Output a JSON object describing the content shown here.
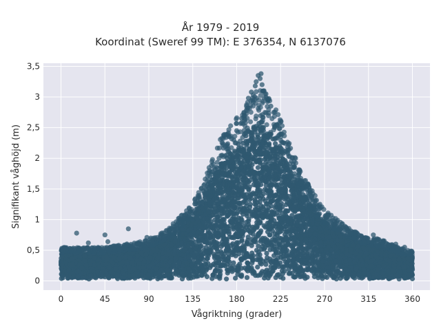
{
  "chart_data": {
    "type": "scatter",
    "title_line1": "År 1979 - 2019",
    "title_line2": "Koordinat (Sweref 99 TM): E 376354, N 6137076",
    "xlabel": "Vågriktning (grader)",
    "ylabel": "Signifikant våghöjd (m)",
    "xlim": [
      -18,
      378
    ],
    "ylim": [
      -0.15,
      3.55
    ],
    "x_ticks": [
      0,
      45,
      90,
      135,
      180,
      225,
      270,
      315,
      360
    ],
    "x_tick_labels": [
      "0",
      "45",
      "90",
      "135",
      "180",
      "225",
      "270",
      "315",
      "360"
    ],
    "y_ticks": [
      0,
      0.5,
      1,
      1.5,
      2,
      2.5,
      3,
      3.5
    ],
    "y_tick_labels": [
      "0",
      "0,5",
      "1",
      "1,5",
      "2",
      "2,5",
      "3",
      "3,5"
    ],
    "grid": true,
    "marker_color": "#2f5870",
    "background_color": "#e5e5ef",
    "envelope": {
      "direction_deg": [
        0,
        20,
        45,
        70,
        90,
        110,
        125,
        135,
        145,
        155,
        165,
        175,
        185,
        195,
        205,
        215,
        225,
        235,
        245,
        255,
        265,
        275,
        290,
        310,
        330,
        345,
        360
      ],
      "dense_max_height_m": [
        0.45,
        0.45,
        0.45,
        0.5,
        0.55,
        0.7,
        0.9,
        1.05,
        1.3,
        1.65,
        1.95,
        2.1,
        2.3,
        2.5,
        2.6,
        2.4,
        2.2,
        1.8,
        1.5,
        1.25,
        1.05,
        0.9,
        0.75,
        0.6,
        0.55,
        0.45,
        0.4
      ]
    },
    "outlier_points": [
      {
        "x": 16,
        "y": 0.78
      },
      {
        "x": 28,
        "y": 0.62
      },
      {
        "x": 45,
        "y": 0.75
      },
      {
        "x": 48,
        "y": 0.64
      },
      {
        "x": 69,
        "y": 0.85
      },
      {
        "x": 88,
        "y": 0.71
      },
      {
        "x": 92,
        "y": 0.7
      },
      {
        "x": 125,
        "y": 0.97
      },
      {
        "x": 130,
        "y": 1.0
      },
      {
        "x": 140,
        "y": 1.25
      },
      {
        "x": 155,
        "y": 1.65
      },
      {
        "x": 165,
        "y": 2.05
      },
      {
        "x": 170,
        "y": 2.15
      },
      {
        "x": 177,
        "y": 2.3
      },
      {
        "x": 180,
        "y": 2.45
      },
      {
        "x": 185,
        "y": 2.65
      },
      {
        "x": 188,
        "y": 2.7
      },
      {
        "x": 190,
        "y": 2.85
      },
      {
        "x": 192,
        "y": 2.98
      },
      {
        "x": 195,
        "y": 3.08
      },
      {
        "x": 197,
        "y": 2.92
      },
      {
        "x": 199,
        "y": 3.18
      },
      {
        "x": 200,
        "y": 3.25
      },
      {
        "x": 202,
        "y": 3.35
      },
      {
        "x": 204,
        "y": 3.3
      },
      {
        "x": 205,
        "y": 3.38
      },
      {
        "x": 206,
        "y": 3.2
      },
      {
        "x": 208,
        "y": 3.1
      },
      {
        "x": 210,
        "y": 3.05
      },
      {
        "x": 212,
        "y": 2.95
      },
      {
        "x": 215,
        "y": 2.85
      },
      {
        "x": 218,
        "y": 2.75
      },
      {
        "x": 221,
        "y": 2.55
      },
      {
        "x": 225,
        "y": 2.4
      },
      {
        "x": 228,
        "y": 2.25
      },
      {
        "x": 232,
        "y": 2.1
      },
      {
        "x": 238,
        "y": 1.9
      },
      {
        "x": 245,
        "y": 1.5
      },
      {
        "x": 250,
        "y": 1.35
      },
      {
        "x": 255,
        "y": 1.2
      },
      {
        "x": 262,
        "y": 1.05
      },
      {
        "x": 270,
        "y": 0.95
      },
      {
        "x": 280,
        "y": 0.85
      },
      {
        "x": 300,
        "y": 0.7
      },
      {
        "x": 320,
        "y": 0.75
      },
      {
        "x": 343,
        "y": 0.6
      },
      {
        "x": 352,
        "y": 0.55
      }
    ]
  }
}
